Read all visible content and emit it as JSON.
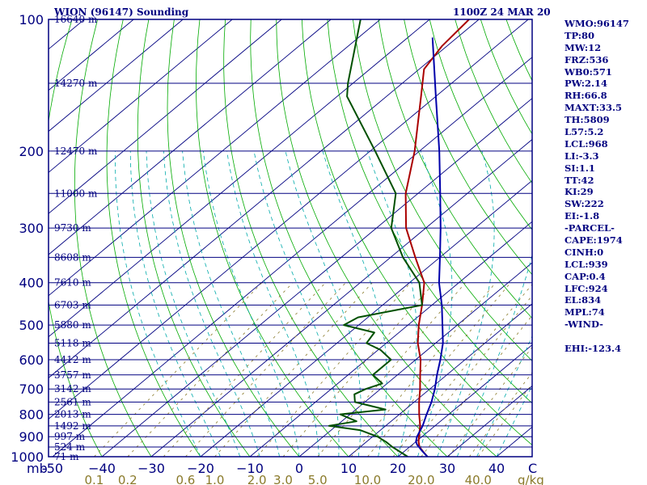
{
  "header": {
    "station": "WION (96147) Sounding",
    "time": "1100Z 24 MAR 20"
  },
  "chart_data": {
    "type": "skew-t",
    "pressure_levels": [
      100,
      200,
      300,
      400,
      500,
      600,
      700,
      800,
      900,
      1000
    ],
    "pressure_unit_label": "mb",
    "pressure_range": [
      100,
      1000
    ],
    "temperature_ticks": [
      -50,
      -40,
      -30,
      -20,
      -10,
      0,
      10,
      20,
      30,
      40
    ],
    "temperature_tick_labels": [
      "-50",
      "−40",
      "−30",
      "−20",
      "−10",
      "0",
      "10",
      "20",
      "30",
      "40"
    ],
    "temperature_unit_label": "C",
    "mixing_ratio_labels": [
      "0.1",
      "0.2",
      "0.6",
      "1.0",
      "2.0",
      "3.0",
      "5.0",
      "10.0",
      "20.0",
      "40.0"
    ],
    "mixing_ratio_unit_label": "g/kg",
    "height_labels": [
      {
        "p": 100,
        "text": "16640 m"
      },
      {
        "p": 140,
        "text": "14270 m"
      },
      {
        "p": 200,
        "text": "12470 m"
      },
      {
        "p": 250,
        "text": "11000 m"
      },
      {
        "p": 300,
        "text": "9730 m"
      },
      {
        "p": 350,
        "text": "8608 m"
      },
      {
        "p": 400,
        "text": "7610 m"
      },
      {
        "p": 450,
        "text": "6703 m"
      },
      {
        "p": 500,
        "text": "5880 m"
      },
      {
        "p": 550,
        "text": "5118 m"
      },
      {
        "p": 600,
        "text": "4412 m"
      },
      {
        "p": 650,
        "text": "3757 m"
      },
      {
        "p": 700,
        "text": "3142 m"
      },
      {
        "p": 750,
        "text": "2561 m"
      },
      {
        "p": 800,
        "text": "2013 m"
      },
      {
        "p": 850,
        "text": "1492 m"
      },
      {
        "p": 900,
        "text": "997 m"
      },
      {
        "p": 950,
        "text": "524 m"
      },
      {
        "p": 1000,
        "text": "71 m"
      }
    ],
    "series": [
      {
        "key": "temperature",
        "color": "#aa0000",
        "points": [
          [
            1000,
            26
          ],
          [
            975,
            24
          ],
          [
            950,
            22
          ],
          [
            925,
            20.6
          ],
          [
            900,
            19.4
          ],
          [
            850,
            17
          ],
          [
            800,
            14
          ],
          [
            750,
            11
          ],
          [
            700,
            8
          ],
          [
            650,
            4.6
          ],
          [
            600,
            1
          ],
          [
            550,
            -3.6
          ],
          [
            500,
            -7.8
          ],
          [
            450,
            -12
          ],
          [
            400,
            -17
          ],
          [
            350,
            -25
          ],
          [
            300,
            -34
          ],
          [
            250,
            -42.5
          ],
          [
            200,
            -51
          ],
          [
            150,
            -63
          ],
          [
            130,
            -69
          ],
          [
            115,
            -71
          ],
          [
            100,
            -72
          ]
        ]
      },
      {
        "key": "dewpoint",
        "color": "#005000",
        "points": [
          [
            1000,
            22
          ],
          [
            950,
            16.5
          ],
          [
            925,
            14
          ],
          [
            900,
            11
          ],
          [
            870,
            6
          ],
          [
            850,
            -1.5
          ],
          [
            830,
            3
          ],
          [
            800,
            -2
          ],
          [
            780,
            6
          ],
          [
            750,
            -2
          ],
          [
            720,
            -4
          ],
          [
            700,
            -3
          ],
          [
            680,
            -1
          ],
          [
            650,
            -5
          ],
          [
            600,
            -5
          ],
          [
            570,
            -9.5
          ],
          [
            550,
            -14
          ],
          [
            520,
            -15
          ],
          [
            500,
            -23
          ],
          [
            480,
            -22
          ],
          [
            450,
            -12
          ],
          [
            400,
            -18
          ],
          [
            350,
            -27.5
          ],
          [
            300,
            -37
          ],
          [
            250,
            -44.5
          ],
          [
            200,
            -59
          ],
          [
            150,
            -78
          ],
          [
            140,
            -81
          ],
          [
            100,
            -94
          ]
        ]
      },
      {
        "key": "parcel",
        "color": "#0000aa",
        "points": [
          [
            1000,
            26
          ],
          [
            970,
            23.5
          ],
          [
            939,
            21
          ],
          [
            924,
            20
          ],
          [
            900,
            19
          ],
          [
            850,
            17.5
          ],
          [
            800,
            15.5
          ],
          [
            750,
            13.5
          ],
          [
            700,
            11
          ],
          [
            650,
            8
          ],
          [
            600,
            5
          ],
          [
            550,
            1.5
          ],
          [
            500,
            -3
          ],
          [
            450,
            -8
          ],
          [
            400,
            -14
          ],
          [
            350,
            -20
          ],
          [
            300,
            -27
          ],
          [
            250,
            -35.5
          ],
          [
            200,
            -46
          ],
          [
            150,
            -60
          ],
          [
            110,
            -75
          ]
        ]
      }
    ]
  },
  "indices": [
    "WMO:96147",
    "TP:80",
    "MW:12",
    "FRZ:536",
    "WB0:571",
    "PW:2.14",
    "RH:66.8",
    "MAXT:33.5",
    "TH:5809",
    "L57:5.2",
    "LCL:968",
    "LI:-3.3",
    "SI:1.1",
    "TT:42",
    "KI:29",
    "SW:222",
    "EI:-1.8",
    "-PARCEL-",
    "CAPE:1974",
    "CINH:0",
    "LCL:939",
    "CAP:0.4",
    "LFC:924",
    "EL:834",
    "MPL:74",
    "-WIND-",
    "",
    "EHI:-123.4"
  ],
  "colors": {
    "frame": "#000080",
    "isobar": "#000080",
    "isotherm": "#000080",
    "dry_adiabat": "#00aa00",
    "moist_adiabat": "#00aaaa",
    "mixing_ratio": "#8a7a2a"
  }
}
